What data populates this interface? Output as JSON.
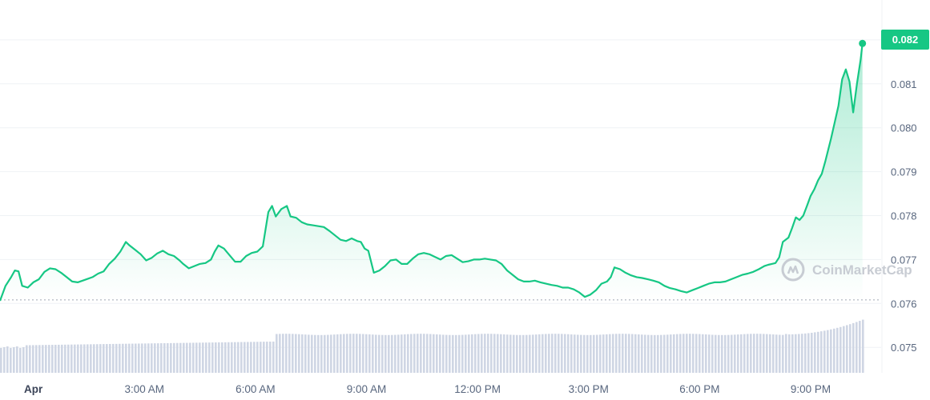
{
  "chart_data": {
    "type": "line",
    "x_tick_labels": [
      "Apr",
      "3:00 AM",
      "6:00 AM",
      "9:00 AM",
      "12:00 PM",
      "3:00 PM",
      "6:00 PM",
      "9:00 PM"
    ],
    "x_tick_hours": [
      0,
      3,
      6,
      9,
      12,
      15,
      18,
      21
    ],
    "y_tick_labels": [
      "0.075",
      "0.076",
      "0.077",
      "0.078",
      "0.079",
      "0.080",
      "0.081",
      "0.082"
    ],
    "ylim": [
      0.07435,
      0.083
    ],
    "xlim_hours": [
      -0.9,
      22.45
    ],
    "baseline": 0.07608,
    "current_price_label": "0.082",
    "watermark": "CoinMarketCap",
    "colors": {
      "line": "#16c784",
      "fill_top": "#16c784",
      "volume": "#cfd6e4",
      "grid": "#eff2f5",
      "tick": "#58667e"
    },
    "price_series": [
      [
        -0.9,
        0.07606
      ],
      [
        -0.75,
        0.0764
      ],
      [
        -0.6,
        0.0766
      ],
      [
        -0.5,
        0.07675
      ],
      [
        -0.4,
        0.07673
      ],
      [
        -0.3,
        0.0764
      ],
      [
        -0.15,
        0.07636
      ],
      [
        0.0,
        0.07648
      ],
      [
        0.15,
        0.07655
      ],
      [
        0.3,
        0.07672
      ],
      [
        0.45,
        0.0768
      ],
      [
        0.6,
        0.07678
      ],
      [
        0.75,
        0.0767
      ],
      [
        0.9,
        0.0766
      ],
      [
        1.05,
        0.0765
      ],
      [
        1.2,
        0.07648
      ],
      [
        1.4,
        0.07654
      ],
      [
        1.6,
        0.0766
      ],
      [
        1.75,
        0.07668
      ],
      [
        1.9,
        0.07673
      ],
      [
        2.05,
        0.0769
      ],
      [
        2.2,
        0.07702
      ],
      [
        2.35,
        0.07718
      ],
      [
        2.5,
        0.0774
      ],
      [
        2.6,
        0.07732
      ],
      [
        2.75,
        0.07722
      ],
      [
        2.9,
        0.07712
      ],
      [
        3.05,
        0.07698
      ],
      [
        3.2,
        0.07704
      ],
      [
        3.35,
        0.07714
      ],
      [
        3.5,
        0.0772
      ],
      [
        3.65,
        0.07712
      ],
      [
        3.8,
        0.07708
      ],
      [
        3.95,
        0.07698
      ],
      [
        4.05,
        0.0769
      ],
      [
        4.2,
        0.0768
      ],
      [
        4.35,
        0.07685
      ],
      [
        4.5,
        0.0769
      ],
      [
        4.65,
        0.07692
      ],
      [
        4.8,
        0.077
      ],
      [
        4.9,
        0.07718
      ],
      [
        5.0,
        0.07732
      ],
      [
        5.15,
        0.07725
      ],
      [
        5.3,
        0.0771
      ],
      [
        5.45,
        0.07695
      ],
      [
        5.6,
        0.07695
      ],
      [
        5.75,
        0.07708
      ],
      [
        5.9,
        0.07715
      ],
      [
        6.05,
        0.07718
      ],
      [
        6.2,
        0.0773
      ],
      [
        6.35,
        0.07808
      ],
      [
        6.45,
        0.07822
      ],
      [
        6.55,
        0.07798
      ],
      [
        6.7,
        0.07815
      ],
      [
        6.85,
        0.07822
      ],
      [
        6.95,
        0.07798
      ],
      [
        7.1,
        0.07795
      ],
      [
        7.25,
        0.07785
      ],
      [
        7.4,
        0.0778
      ],
      [
        7.55,
        0.07778
      ],
      [
        7.7,
        0.07776
      ],
      [
        7.85,
        0.07774
      ],
      [
        8.0,
        0.07765
      ],
      [
        8.15,
        0.07755
      ],
      [
        8.3,
        0.07745
      ],
      [
        8.45,
        0.07742
      ],
      [
        8.6,
        0.07748
      ],
      [
        8.75,
        0.07742
      ],
      [
        8.85,
        0.0774
      ],
      [
        8.95,
        0.07725
      ],
      [
        9.05,
        0.0772
      ],
      [
        9.2,
        0.0767
      ],
      [
        9.35,
        0.07675
      ],
      [
        9.5,
        0.07685
      ],
      [
        9.65,
        0.07698
      ],
      [
        9.8,
        0.077
      ],
      [
        9.95,
        0.0769
      ],
      [
        10.1,
        0.0769
      ],
      [
        10.25,
        0.07702
      ],
      [
        10.4,
        0.07712
      ],
      [
        10.55,
        0.07715
      ],
      [
        10.7,
        0.07712
      ],
      [
        10.85,
        0.07706
      ],
      [
        11.0,
        0.077
      ],
      [
        11.15,
        0.07708
      ],
      [
        11.3,
        0.0771
      ],
      [
        11.45,
        0.07702
      ],
      [
        11.6,
        0.07694
      ],
      [
        11.75,
        0.07696
      ],
      [
        11.9,
        0.077
      ],
      [
        12.05,
        0.077
      ],
      [
        12.2,
        0.07702
      ],
      [
        12.35,
        0.077
      ],
      [
        12.5,
        0.07698
      ],
      [
        12.65,
        0.0769
      ],
      [
        12.8,
        0.07675
      ],
      [
        12.95,
        0.07665
      ],
      [
        13.1,
        0.07655
      ],
      [
        13.25,
        0.0765
      ],
      [
        13.4,
        0.0765
      ],
      [
        13.55,
        0.07652
      ],
      [
        13.7,
        0.07648
      ],
      [
        13.85,
        0.07645
      ],
      [
        14.0,
        0.07642
      ],
      [
        14.15,
        0.0764
      ],
      [
        14.3,
        0.07636
      ],
      [
        14.45,
        0.07636
      ],
      [
        14.6,
        0.07632
      ],
      [
        14.75,
        0.07625
      ],
      [
        14.9,
        0.07615
      ],
      [
        15.05,
        0.0762
      ],
      [
        15.2,
        0.0763
      ],
      [
        15.35,
        0.07645
      ],
      [
        15.5,
        0.0765
      ],
      [
        15.6,
        0.0766
      ],
      [
        15.7,
        0.07682
      ],
      [
        15.85,
        0.07678
      ],
      [
        16.0,
        0.0767
      ],
      [
        16.15,
        0.07664
      ],
      [
        16.3,
        0.0766
      ],
      [
        16.45,
        0.07658
      ],
      [
        16.6,
        0.07655
      ],
      [
        16.75,
        0.07652
      ],
      [
        16.9,
        0.07648
      ],
      [
        17.05,
        0.0764
      ],
      [
        17.2,
        0.07635
      ],
      [
        17.35,
        0.07632
      ],
      [
        17.5,
        0.07628
      ],
      [
        17.65,
        0.07625
      ],
      [
        17.8,
        0.0763
      ],
      [
        17.95,
        0.07635
      ],
      [
        18.1,
        0.0764
      ],
      [
        18.25,
        0.07645
      ],
      [
        18.4,
        0.07648
      ],
      [
        18.55,
        0.07648
      ],
      [
        18.7,
        0.0765
      ],
      [
        18.85,
        0.07655
      ],
      [
        19.0,
        0.0766
      ],
      [
        19.15,
        0.07665
      ],
      [
        19.3,
        0.07668
      ],
      [
        19.45,
        0.07672
      ],
      [
        19.6,
        0.07678
      ],
      [
        19.75,
        0.07685
      ],
      [
        19.85,
        0.07688
      ],
      [
        19.95,
        0.0769
      ],
      [
        20.05,
        0.07692
      ],
      [
        20.15,
        0.07705
      ],
      [
        20.25,
        0.0774
      ],
      [
        20.4,
        0.0775
      ],
      [
        20.5,
        0.07772
      ],
      [
        20.6,
        0.07796
      ],
      [
        20.7,
        0.0779
      ],
      [
        20.8,
        0.078
      ],
      [
        20.9,
        0.07822
      ],
      [
        21.0,
        0.07845
      ],
      [
        21.1,
        0.0786
      ],
      [
        21.2,
        0.0788
      ],
      [
        21.3,
        0.07895
      ],
      [
        21.4,
        0.07925
      ],
      [
        21.55,
        0.07975
      ],
      [
        21.65,
        0.08012
      ],
      [
        21.75,
        0.0805
      ],
      [
        21.85,
        0.0811
      ],
      [
        21.95,
        0.08133
      ],
      [
        22.05,
        0.08105
      ],
      [
        22.15,
        0.08035
      ],
      [
        22.25,
        0.081
      ],
      [
        22.35,
        0.08155
      ],
      [
        22.4,
        0.08192
      ]
    ],
    "volume_heights_px": null
  }
}
